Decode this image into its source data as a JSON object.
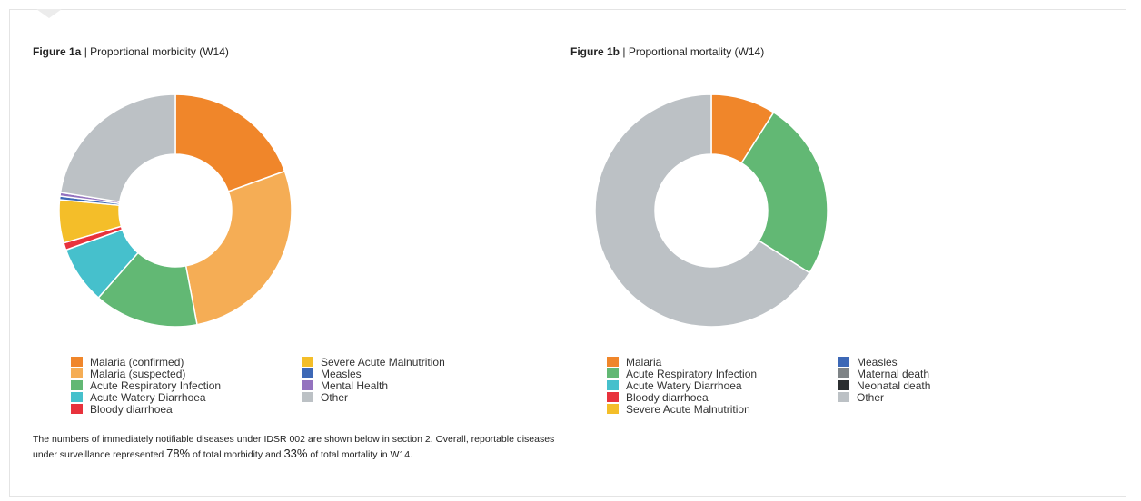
{
  "figure_a": {
    "label": "Figure 1a",
    "separator": "|",
    "title": "Proportional morbidity (W14)"
  },
  "figure_b": {
    "label": "Figure 1b",
    "separator": "|",
    "title": "Proportional mortality (W14)"
  },
  "note": {
    "part1": "The numbers of immediately notifiable diseases under IDSR 002 are shown below in section 2. Overall, reportable diseases under surveillance represented ",
    "morbidity_pct": "78%",
    "part2": " of total morbidity and ",
    "mortality_pct": "33%",
    "part3": " of total mortality in W14."
  },
  "chart_data": [
    {
      "type": "pie",
      "title": "Proportional morbidity (W14)",
      "legend_position": "bottom",
      "categories": [
        "Malaria (confirmed)",
        "Malaria (suspected)",
        "Acute Respiratory Infection",
        "Acute Watery Diarrhoea",
        "Bloody diarrhoea",
        "Severe Acute Malnutrition",
        "Measles",
        "Mental Health",
        "Other"
      ],
      "values": [
        19.5,
        27.5,
        14.5,
        8.0,
        1.0,
        6.0,
        0.5,
        0.5,
        22.5
      ],
      "colors": [
        "#f0862a",
        "#f5ad55",
        "#62b874",
        "#46c0cc",
        "#e8323c",
        "#f4be29",
        "#3d68b6",
        "#9473bf",
        "#bcc1c5"
      ]
    },
    {
      "type": "pie",
      "title": "Proportional mortality (W14)",
      "legend_position": "bottom",
      "categories": [
        "Malaria",
        "Acute Respiratory Infection",
        "Acute Watery Diarrhoea",
        "Bloody diarrhoea",
        "Severe Acute Malnutrition",
        "Measles",
        "Maternal death",
        "Neonatal death",
        "Other"
      ],
      "values": [
        9,
        25,
        0,
        0,
        0,
        0,
        0,
        0,
        66
      ],
      "colors": [
        "#f0862a",
        "#62b874",
        "#46c0cc",
        "#e8323c",
        "#f4be29",
        "#3d68b6",
        "#7f8487",
        "#2b2e30",
        "#bcc1c5"
      ]
    }
  ]
}
